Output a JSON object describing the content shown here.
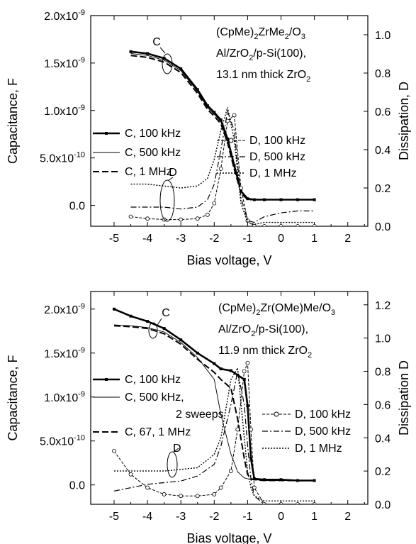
{
  "chart_data": [
    {
      "type": "line",
      "xlabel": "Bias voltage, V",
      "ylabel": "Capacitance, F",
      "y2label": "Dissipation, D",
      "xlim": [
        -5.7,
        2.6
      ],
      "ylim": [
        -2.2e-10,
        2e-09
      ],
      "y2lim": [
        0.0,
        1.1
      ],
      "x_ticks": [
        "-5",
        "-4",
        "-3",
        "-2",
        "-1",
        "0",
        "1",
        "2"
      ],
      "y_ticks": [
        "0.0",
        "5.0x10",
        "1.0x10",
        "1.5x10",
        "2.0x10"
      ],
      "y_tick_exponents": [
        "",
        "-10",
        "-9",
        "-9",
        "-9"
      ],
      "y2_ticks": [
        "0.0",
        "0.2",
        "0.4",
        "0.6",
        "0.8",
        "1.0"
      ],
      "annotation": {
        "line1": "(CpMe)",
        "line1_sub": "2",
        "line1_rest": "ZrMe",
        "line1_sub2": "2",
        "line1_end": "/O",
        "line1_sub3": "3",
        "line2": "Al/ZrO",
        "line2_sub": "2",
        "line2_end": "/p-Si(100),",
        "line3": "13.1 nm thick ZrO",
        "line3_sub": "2"
      },
      "callouts": [
        "C",
        "D"
      ],
      "legend_c": [
        "C, 100 kHz",
        "C, 500 kHz",
        "C, 1 MHz"
      ],
      "legend_d": [
        "D, 100 kHz",
        "D, 500 kHz",
        "D, 1 MHz"
      ],
      "x": [
        -4.5,
        -4.0,
        -3.5,
        -3.0,
        -2.5,
        -2.2,
        -2.0,
        -1.8,
        -1.6,
        -1.4,
        -1.2,
        -1.0,
        -0.8,
        -0.5,
        0.0,
        0.5,
        1.0
      ],
      "series": [
        {
          "name": "C, 100 kHz",
          "axis": "left",
          "values": [
            1.62e-09,
            1.6e-09,
            1.55e-09,
            1.44e-09,
            1.22e-09,
            1.05e-09,
            9.8e-10,
            9e-10,
            7e-10,
            4.2e-10,
            1.5e-10,
            7e-11,
            6e-11,
            6e-11,
            6e-11,
            6e-11,
            6e-11
          ]
        },
        {
          "name": "C, 500 kHz",
          "axis": "left",
          "values": [
            1.6e-09,
            1.58e-09,
            1.53e-09,
            1.42e-09,
            1.2e-09,
            1.03e-09,
            9.6e-10,
            8.8e-10,
            6.8e-10,
            4e-10,
            1.4e-10,
            7e-11,
            6e-11,
            6e-11,
            6e-11,
            6e-11,
            6e-11
          ]
        },
        {
          "name": "C, 1 MHz",
          "axis": "left",
          "values": [
            1.58e-09,
            1.56e-09,
            1.51e-09,
            1.4e-09,
            1.18e-09,
            1.01e-09,
            9.4e-10,
            8.6e-10,
            6.6e-10,
            3.8e-10,
            1.3e-10,
            6e-11,
            6e-11,
            6e-11,
            6e-11,
            6e-11,
            6e-11
          ]
        },
        {
          "name": "D, 100 kHz",
          "axis": "right",
          "values": [
            0.05,
            0.04,
            0.035,
            0.035,
            0.04,
            0.06,
            0.12,
            0.3,
            0.55,
            0.58,
            0.2,
            0.03,
            0.0,
            0.0,
            0.0,
            0.0,
            0.0
          ]
        },
        {
          "name": "D, 500 kHz",
          "axis": "right",
          "values": [
            0.1,
            0.1,
            0.1,
            0.09,
            0.1,
            0.14,
            0.22,
            0.4,
            0.6,
            0.5,
            0.15,
            0.03,
            0.02,
            0.05,
            0.07,
            0.08,
            0.08
          ]
        },
        {
          "name": "D, 1 MHz",
          "axis": "right",
          "values": [
            0.22,
            0.22,
            0.21,
            0.2,
            0.21,
            0.25,
            0.35,
            0.5,
            0.62,
            0.45,
            0.12,
            0.02,
            0.01,
            0.02,
            0.02,
            0.02,
            0.02
          ]
        }
      ]
    },
    {
      "type": "line",
      "xlabel": "Bias voltage, V",
      "ylabel": "Capacitance, F",
      "y2label": "Dissipation D",
      "xlim": [
        -5.7,
        2.6
      ],
      "ylim": [
        -2.2e-10,
        2.2e-09
      ],
      "y2lim": [
        0.0,
        1.28
      ],
      "x_ticks": [
        "-5",
        "-4",
        "-3",
        "-2",
        "-1",
        "0",
        "1",
        "2"
      ],
      "y_ticks": [
        "0.0",
        "5.0x10",
        "1.0x10",
        "1.5x10",
        "2.0x10"
      ],
      "y_tick_exponents": [
        "",
        "-10",
        "-9",
        "-9",
        "-9"
      ],
      "y2_ticks": [
        "0.0",
        "0.2",
        "0.4",
        "0.6",
        "0.8",
        "1.0",
        "1.2"
      ],
      "annotation": {
        "line1": "(CpMe)",
        "line1_sub": "2",
        "line1_rest": "Zr(OMe)Me/O",
        "line1_sub2": "3",
        "line2": "Al/ZrO",
        "line2_sub": "2",
        "line2_end": "/p-Si(100),",
        "line3": "11.9 nm thick ZrO",
        "line3_sub": "2"
      },
      "callouts": [
        "C",
        "D"
      ],
      "legend_c": [
        "C, 100 kHz",
        "C, 500 kHz,",
        "2 sweeps",
        "C, 67, 1 MHz"
      ],
      "legend_d": [
        "D, 100 kHz",
        "D, 500 kHz",
        "D, 1 MHz"
      ],
      "x": [
        -5.0,
        -4.5,
        -4.0,
        -3.5,
        -3.0,
        -2.5,
        -2.0,
        -1.8,
        -1.5,
        -1.3,
        -1.1,
        -1.0,
        -0.9,
        -0.8,
        -0.5,
        0.0,
        0.5,
        1.0
      ],
      "series": [
        {
          "name": "C, 100 kHz",
          "axis": "left",
          "values": [
            2e-09,
            1.92e-09,
            1.86e-09,
            1.78e-09,
            1.65e-09,
            1.5e-09,
            1.38e-09,
            1.32e-09,
            1.3e-09,
            1.25e-09,
            1.2e-09,
            9e-10,
            3e-10,
            7e-11,
            6e-11,
            6e-11,
            5e-11,
            5e-11
          ]
        },
        {
          "name": "C, 500 kHz, 2 sweeps",
          "axis": "left",
          "values": [
            1.82e-09,
            1.81e-09,
            1.79e-09,
            1.74e-09,
            1.62e-09,
            1.45e-09,
            1.2e-09,
            8e-10,
            3.5e-10,
            1.5e-10,
            8e-11,
            7e-11,
            6e-11,
            6e-11,
            5e-11,
            5e-11,
            5e-11,
            5e-11
          ]
        },
        {
          "name": "C, 67, 1 MHz",
          "axis": "left",
          "values": [
            1.81e-09,
            1.8e-09,
            1.78e-09,
            1.72e-09,
            1.6e-09,
            1.43e-09,
            1.28e-09,
            1.2e-09,
            1.1e-09,
            7.5e-10,
            3e-10,
            1.2e-10,
            7e-11,
            6e-11,
            5e-11,
            5e-11,
            5e-11,
            5e-11
          ]
        },
        {
          "name": "D, 100 kHz",
          "axis": "right",
          "values": [
            0.32,
            0.18,
            0.1,
            0.06,
            0.05,
            0.05,
            0.06,
            0.1,
            0.2,
            0.45,
            0.8,
            0.85,
            0.45,
            0.1,
            0.0,
            0.0,
            0.0,
            0.0
          ]
        },
        {
          "name": "D, 500 kHz",
          "axis": "right",
          "values": [
            0.08,
            0.1,
            0.12,
            0.13,
            0.14,
            0.17,
            0.24,
            0.35,
            0.6,
            0.8,
            0.6,
            0.35,
            0.15,
            0.05,
            0.0,
            0.0,
            0.0,
            0.0
          ]
        },
        {
          "name": "D, 1 MHz",
          "axis": "right",
          "values": [
            0.2,
            0.2,
            0.2,
            0.2,
            0.21,
            0.22,
            0.3,
            0.4,
            0.75,
            0.82,
            0.4,
            0.2,
            0.1,
            0.05,
            0.02,
            0.02,
            0.02,
            0.02
          ]
        }
      ]
    }
  ],
  "colors": {
    "ink": "#000000",
    "background": "#ffffff"
  }
}
